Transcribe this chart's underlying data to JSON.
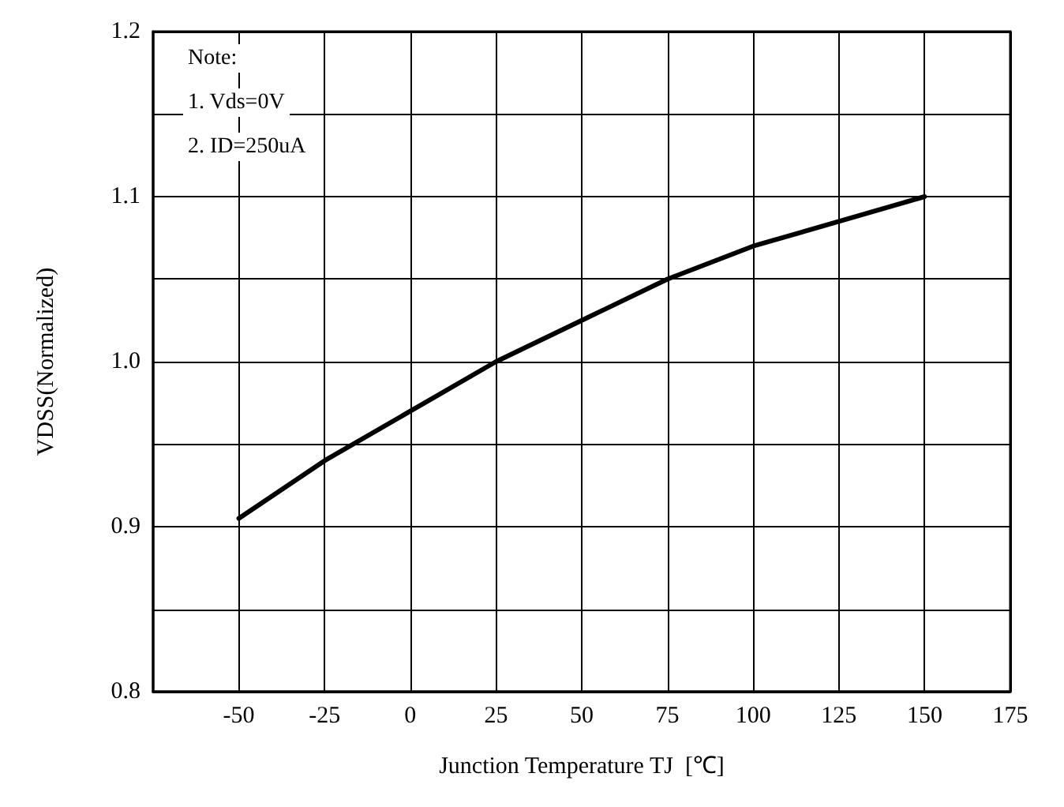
{
  "chart_data": {
    "type": "line",
    "xlabel": "Junction Temperature TJ  [℃]",
    "ylabel": "VDSS(Normalized)",
    "x": [
      -50,
      -25,
      0,
      25,
      50,
      75,
      100,
      125,
      150
    ],
    "series": [
      {
        "color": "#000000",
        "values": [
          0.905,
          0.94,
          0.97,
          1.0,
          1.025,
          1.05,
          1.07,
          1.085,
          1.1
        ]
      }
    ],
    "xlim": [
      -75,
      175
    ],
    "xticks": [
      -50,
      -25,
      0,
      25,
      50,
      75,
      100,
      125,
      150,
      175
    ],
    "ylim": [
      0.8,
      1.2
    ],
    "yticks": [
      0.8,
      {
        "value": 0.85,
        "label": null
      },
      0.9,
      {
        "value": 0.95,
        "label": null
      },
      {
        "value": 1.0,
        "label": "1.0"
      },
      {
        "value": 1.05,
        "label": null
      },
      1.1,
      {
        "value": 1.15,
        "label": null
      },
      1.2
    ],
    "annotations": [
      "Note:",
      "1. Vds=0V",
      "2. ID=250uA"
    ],
    "grid": true,
    "marker": "none",
    "line_style": "solid"
  }
}
